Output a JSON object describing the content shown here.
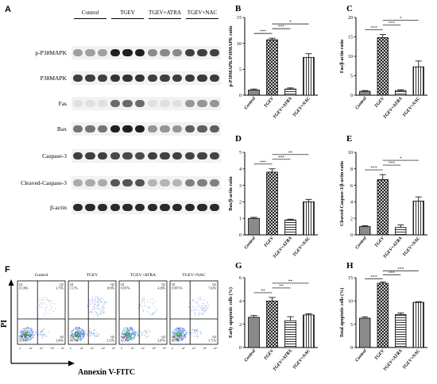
{
  "panel_letters": [
    "A",
    "B",
    "C",
    "D",
    "E",
    "F",
    "G",
    "H"
  ],
  "blots": {
    "groups": [
      "Control",
      "TGEV",
      "TGEV+ATRA",
      "TGEV+NAC"
    ],
    "rows": [
      {
        "label": "p-P38MAPK",
        "intensity": [
          0.35,
          0.35,
          0.35,
          0.95,
          0.95,
          0.95,
          0.45,
          0.45,
          0.45,
          0.8,
          0.8,
          0.8
        ]
      },
      {
        "label": "P38MAPK",
        "intensity": [
          0.8,
          0.8,
          0.8,
          0.85,
          0.85,
          0.85,
          0.8,
          0.8,
          0.8,
          0.82,
          0.82,
          0.82
        ]
      },
      {
        "label": "Fas",
        "intensity": [
          0.05,
          0.05,
          0.05,
          0.6,
          0.6,
          0.6,
          0.05,
          0.05,
          0.05,
          0.4,
          0.4,
          0.4
        ]
      },
      {
        "label": "Bax",
        "intensity": [
          0.55,
          0.55,
          0.55,
          0.95,
          0.95,
          0.95,
          0.4,
          0.4,
          0.4,
          0.65,
          0.65,
          0.65
        ]
      },
      {
        "label": "Caspase-3",
        "intensity": [
          0.8,
          0.8,
          0.8,
          0.75,
          0.75,
          0.75,
          0.8,
          0.8,
          0.8,
          0.78,
          0.78,
          0.78
        ]
      },
      {
        "label": "Cleaved-Caspase-3",
        "intensity": [
          0.3,
          0.3,
          0.3,
          0.7,
          0.7,
          0.7,
          0.25,
          0.25,
          0.25,
          0.5,
          0.5,
          0.5
        ]
      },
      {
        "label": "β-actin",
        "intensity": [
          0.9,
          0.9,
          0.9,
          0.9,
          0.9,
          0.9,
          0.9,
          0.9,
          0.9,
          0.9,
          0.9,
          0.9
        ]
      }
    ]
  },
  "flow": {
    "xlabel": "Annexin V-FITC",
    "ylabel": "PI",
    "ticks": [
      "0",
      "10²",
      "10³",
      "10⁴",
      "10⁵"
    ],
    "plots": [
      {
        "title": "Control",
        "q1": "0.136%",
        "q2": "3.75%",
        "q3": "2.66%",
        "q4": "93.1%"
      },
      {
        "title": "TGEV",
        "q1": "1.17%",
        "q2": "10.8%",
        "q3": "3.15%",
        "q4": "80.7%"
      },
      {
        "title": "TGEV+ATRA",
        "q1": "0.057%",
        "q2": "4.28%",
        "q3": "2.87%",
        "q4": "92.8%"
      },
      {
        "title": "TGEV+NAC",
        "q1": "0.0971%",
        "q2": "7.02%",
        "q3": "3.71%",
        "q4": "88.9%"
      }
    ]
  },
  "chart_data": [
    {
      "id": "B",
      "type": "bar",
      "categories": [
        "Control",
        "TGEV",
        "TGEV+ATRA",
        "TGEV+NAC"
      ],
      "values": [
        1.0,
        10.7,
        1.2,
        7.3
      ],
      "errors": [
        0.2,
        0.3,
        0.2,
        0.7
      ],
      "ylabel": "p-P38MAPK/P38MAPK ratio",
      "ylim": [
        0,
        15
      ],
      "yticks": [
        0,
        5,
        10,
        15
      ],
      "patterns": [
        "solid",
        "crosshatch",
        "hline",
        "vline"
      ],
      "brackets": [
        {
          "from": 0,
          "to": 1,
          "label": "***"
        },
        {
          "from": 1,
          "to": 2,
          "label": "***"
        },
        {
          "from": 1,
          "to": 3,
          "label": "*"
        }
      ]
    },
    {
      "id": "C",
      "type": "bar",
      "categories": [
        "Control",
        "TGEV",
        "TGEV+ATRA",
        "TGEV+NAC"
      ],
      "values": [
        1.0,
        14.8,
        1.2,
        7.3
      ],
      "errors": [
        0.2,
        0.8,
        0.2,
        1.5
      ],
      "ylabel": "Fas/β-actin ratio",
      "ylim": [
        0,
        20
      ],
      "yticks": [
        0,
        5,
        10,
        15,
        20
      ],
      "patterns": [
        "solid",
        "crosshatch",
        "hline",
        "vline"
      ],
      "brackets": [
        {
          "from": 0,
          "to": 1,
          "label": "***"
        },
        {
          "from": 1,
          "to": 2,
          "label": "***"
        },
        {
          "from": 1,
          "to": 3,
          "label": "*"
        }
      ]
    },
    {
      "id": "D",
      "type": "bar",
      "categories": [
        "Control",
        "TGEV",
        "TGEV+ATRA",
        "TGEV+NAC"
      ],
      "values": [
        1.0,
        3.8,
        0.9,
        2.0
      ],
      "errors": [
        0.06,
        0.2,
        0.05,
        0.15
      ],
      "ylabel": "Bax/β-actin ratio",
      "ylim": [
        0,
        5
      ],
      "yticks": [
        0,
        1,
        2,
        3,
        4,
        5
      ],
      "patterns": [
        "solid",
        "crosshatch",
        "hline",
        "vline"
      ],
      "brackets": [
        {
          "from": 0,
          "to": 1,
          "label": "***"
        },
        {
          "from": 1,
          "to": 2,
          "label": "***"
        },
        {
          "from": 1,
          "to": 3,
          "label": "**"
        }
      ]
    },
    {
      "id": "E",
      "type": "bar",
      "categories": [
        "Control",
        "TGEV",
        "TGEV+ATRA",
        "TGEV+NAC"
      ],
      "values": [
        1.0,
        6.7,
        0.9,
        4.1
      ],
      "errors": [
        0.1,
        0.6,
        0.3,
        0.5
      ],
      "ylabel": "Cleaved-Caspase-3/β-actin ratio",
      "ylim": [
        0,
        10
      ],
      "yticks": [
        0,
        2,
        4,
        6,
        8,
        10
      ],
      "patterns": [
        "solid",
        "crosshatch",
        "hline",
        "vline"
      ],
      "brackets": [
        {
          "from": 0,
          "to": 1,
          "label": "***"
        },
        {
          "from": 1,
          "to": 2,
          "label": "***"
        },
        {
          "from": 1,
          "to": 3,
          "label": "*"
        }
      ]
    },
    {
      "id": "G",
      "type": "bar",
      "categories": [
        "Control",
        "TGEV",
        "TGEV+ATRA",
        "TGEV+NAC"
      ],
      "values": [
        2.6,
        4.0,
        2.3,
        2.8
      ],
      "errors": [
        0.15,
        0.3,
        0.35,
        0.1
      ],
      "ylabel": "Early apoptotic cells (%)",
      "ylim": [
        0,
        6
      ],
      "yticks": [
        0,
        2,
        4,
        6
      ],
      "patterns": [
        "solid",
        "crosshatch",
        "hline",
        "vline"
      ],
      "brackets": [
        {
          "from": 0,
          "to": 1,
          "label": "**"
        },
        {
          "from": 1,
          "to": 2,
          "label": "**"
        },
        {
          "from": 1,
          "to": 3,
          "label": "**"
        }
      ]
    },
    {
      "id": "H",
      "type": "bar",
      "categories": [
        "Control",
        "TGEV",
        "TGEV+ATRA",
        "TGEV+NAC"
      ],
      "values": [
        6.3,
        13.8,
        7.1,
        9.7
      ],
      "errors": [
        0.3,
        0.3,
        0.3,
        0.15
      ],
      "ylabel": "Total apoptotic cells (%)",
      "ylim": [
        0,
        15
      ],
      "yticks": [
        0,
        5,
        10,
        15
      ],
      "patterns": [
        "solid",
        "crosshatch",
        "hline",
        "vline"
      ],
      "brackets": [
        {
          "from": 0,
          "to": 1,
          "label": "***"
        },
        {
          "from": 1,
          "to": 2,
          "label": "***"
        },
        {
          "from": 1,
          "to": 3,
          "label": "***"
        }
      ]
    }
  ]
}
